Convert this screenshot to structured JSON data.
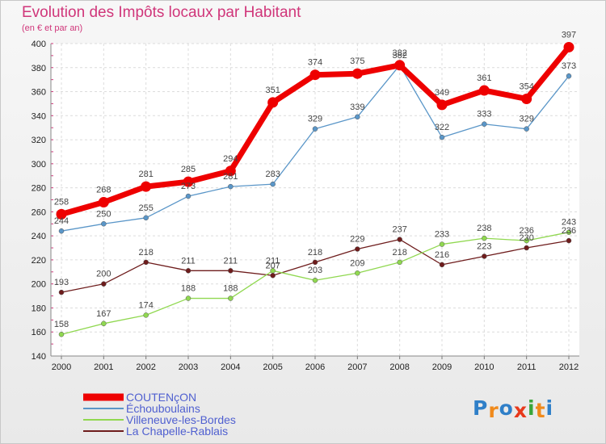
{
  "chart_data": {
    "type": "line",
    "title": "Evolution des Impôts locaux par Habitant",
    "subtitle": "(en € et par an)",
    "xlabel": "",
    "ylabel": "",
    "x": [
      "2000",
      "2001",
      "2002",
      "2003",
      "2004",
      "2005",
      "2006",
      "2007",
      "2008",
      "2009",
      "2010",
      "2011",
      "2012"
    ],
    "ylim": [
      140,
      400
    ],
    "yticks": [
      140,
      160,
      180,
      200,
      220,
      240,
      260,
      280,
      300,
      320,
      340,
      360,
      380,
      400
    ],
    "grid": true,
    "legend_position": "bottom-left",
    "series": [
      {
        "name": "COUTENçON",
        "color": "#ee0000",
        "values": [
          258,
          268,
          281,
          285,
          294,
          351,
          374,
          375,
          382,
          349,
          361,
          354,
          397
        ]
      },
      {
        "name": "Échouboulains",
        "color": "#5a96c8",
        "values": [
          244,
          250,
          255,
          273,
          281,
          283,
          329,
          339,
          382,
          322,
          333,
          329,
          373
        ]
      },
      {
        "name": "Villeneuve-les-Bordes",
        "color": "#90d850",
        "values": [
          158,
          167,
          174,
          188,
          188,
          211,
          203,
          209,
          218,
          233,
          238,
          236,
          243
        ]
      },
      {
        "name": "La Chapelle-Rablais",
        "color": "#6e1c1c",
        "values": [
          193,
          200,
          218,
          211,
          211,
          207,
          218,
          229,
          237,
          216,
          223,
          230,
          236
        ]
      }
    ]
  },
  "logo": {
    "letters": [
      "P",
      "r",
      "o",
      "x",
      "i",
      "t",
      "i"
    ],
    "colors": [
      "#2f7fc8",
      "#f08a1c",
      "#2f7fc8",
      "#e8391b",
      "#3aa63a",
      "#f08a1c",
      "#2f7fc8"
    ]
  }
}
